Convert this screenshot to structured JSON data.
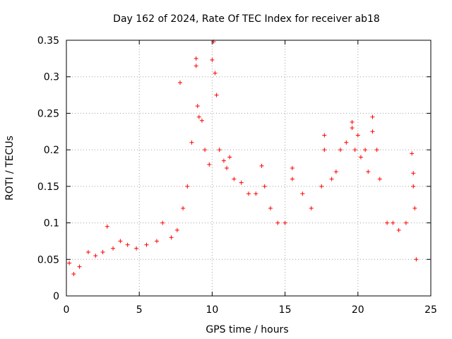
{
  "chart_data": {
    "type": "scatter",
    "title": "Day 162 of 2024, Rate Of TEC Index for receiver ab18",
    "xlabel": "GPS time / hours",
    "ylabel": "ROTI / TECUs",
    "xlim": [
      0,
      25
    ],
    "ylim": [
      0,
      0.35
    ],
    "x_ticks": [
      0,
      5,
      10,
      15,
      20,
      25
    ],
    "x_tick_labels": [
      "0",
      "5",
      "10",
      "15",
      "20",
      "25"
    ],
    "y_ticks": [
      0,
      0.05,
      0.1,
      0.15,
      0.2,
      0.25,
      0.3,
      0.35
    ],
    "y_tick_labels": [
      "0",
      "0.05",
      "0.1",
      "0.15",
      "0.2",
      "0.25",
      "0.3",
      "0.35"
    ],
    "grid": true,
    "marker": "+",
    "marker_color": "#ff0000",
    "series": [
      {
        "name": "ROTI",
        "points": [
          [
            0.2,
            0.045
          ],
          [
            0.5,
            0.03
          ],
          [
            0.9,
            0.04
          ],
          [
            1.5,
            0.06
          ],
          [
            2.0,
            0.055
          ],
          [
            2.5,
            0.06
          ],
          [
            2.8,
            0.095
          ],
          [
            3.2,
            0.065
          ],
          [
            3.7,
            0.075
          ],
          [
            4.2,
            0.07
          ],
          [
            4.8,
            0.065
          ],
          [
            5.5,
            0.07
          ],
          [
            6.2,
            0.075
          ],
          [
            6.6,
            0.1
          ],
          [
            7.2,
            0.08
          ],
          [
            7.6,
            0.09
          ],
          [
            7.8,
            0.292
          ],
          [
            8.0,
            0.12
          ],
          [
            8.3,
            0.15
          ],
          [
            8.6,
            0.21
          ],
          [
            8.9,
            0.325
          ],
          [
            8.9,
            0.315
          ],
          [
            9.0,
            0.26
          ],
          [
            9.1,
            0.245
          ],
          [
            9.3,
            0.24
          ],
          [
            9.5,
            0.2
          ],
          [
            9.8,
            0.18
          ],
          [
            10.0,
            0.323
          ],
          [
            10.1,
            0.348
          ],
          [
            10.2,
            0.305
          ],
          [
            10.3,
            0.275
          ],
          [
            10.5,
            0.2
          ],
          [
            10.8,
            0.185
          ],
          [
            11.0,
            0.175
          ],
          [
            11.2,
            0.19
          ],
          [
            11.5,
            0.16
          ],
          [
            12.0,
            0.155
          ],
          [
            12.5,
            0.14
          ],
          [
            13.0,
            0.14
          ],
          [
            13.4,
            0.178
          ],
          [
            13.6,
            0.15
          ],
          [
            14.0,
            0.12
          ],
          [
            14.5,
            0.1
          ],
          [
            15.0,
            0.1
          ],
          [
            15.5,
            0.175
          ],
          [
            15.5,
            0.16
          ],
          [
            16.2,
            0.14
          ],
          [
            16.8,
            0.12
          ],
          [
            17.5,
            0.15
          ],
          [
            17.7,
            0.22
          ],
          [
            17.7,
            0.2
          ],
          [
            18.2,
            0.16
          ],
          [
            18.5,
            0.17
          ],
          [
            18.8,
            0.2
          ],
          [
            19.2,
            0.21
          ],
          [
            19.6,
            0.238
          ],
          [
            19.6,
            0.23
          ],
          [
            19.8,
            0.2
          ],
          [
            20.0,
            0.22
          ],
          [
            20.2,
            0.19
          ],
          [
            20.5,
            0.2
          ],
          [
            20.7,
            0.17
          ],
          [
            21.0,
            0.245
          ],
          [
            21.0,
            0.225
          ],
          [
            21.3,
            0.2
          ],
          [
            21.5,
            0.16
          ],
          [
            22.0,
            0.1
          ],
          [
            22.4,
            0.1
          ],
          [
            22.8,
            0.09
          ],
          [
            23.3,
            0.1
          ],
          [
            23.7,
            0.195
          ],
          [
            23.8,
            0.168
          ],
          [
            23.8,
            0.15
          ],
          [
            23.9,
            0.12
          ],
          [
            24.0,
            0.05
          ]
        ]
      }
    ]
  }
}
